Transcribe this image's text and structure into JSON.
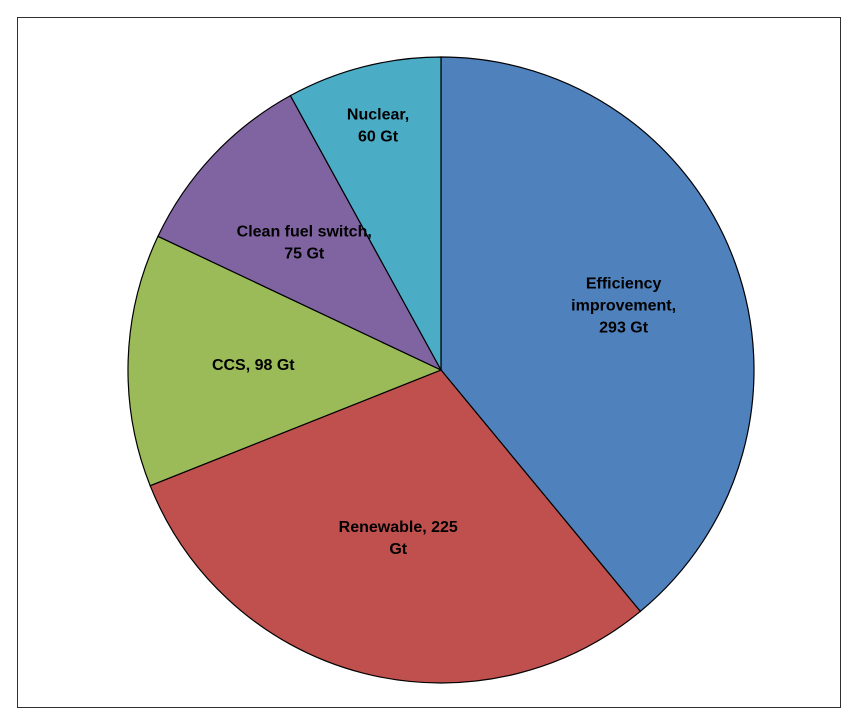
{
  "chart_data": {
    "type": "pie",
    "title": "",
    "start_angle": "12 o'clock",
    "direction": "clockwise",
    "slices": [
      {
        "name": "Efficiency improvement",
        "value": 293,
        "unit": "Gt",
        "color": "#4F81BD",
        "label_lines": [
          "Efficiency",
          "improvement,",
          "293 Gt"
        ]
      },
      {
        "name": "Renewable",
        "value": 225,
        "unit": "Gt",
        "color": "#C0504D",
        "label_lines": [
          "Renewable, 225",
          "Gt"
        ]
      },
      {
        "name": "CCS",
        "value": 98,
        "unit": "Gt",
        "color": "#9BBB59",
        "label_lines": [
          "CCS, 98 Gt"
        ]
      },
      {
        "name": "Clean fuel switch",
        "value": 75,
        "unit": "Gt",
        "color": "#8064A2",
        "label_lines": [
          "Clean fuel switch,",
          "75 Gt"
        ]
      },
      {
        "name": "Nuclear",
        "value": 60,
        "unit": "Gt",
        "color": "#4BACC6",
        "label_lines": [
          "Nuclear,",
          "60 Gt"
        ]
      }
    ],
    "legend": "none"
  }
}
